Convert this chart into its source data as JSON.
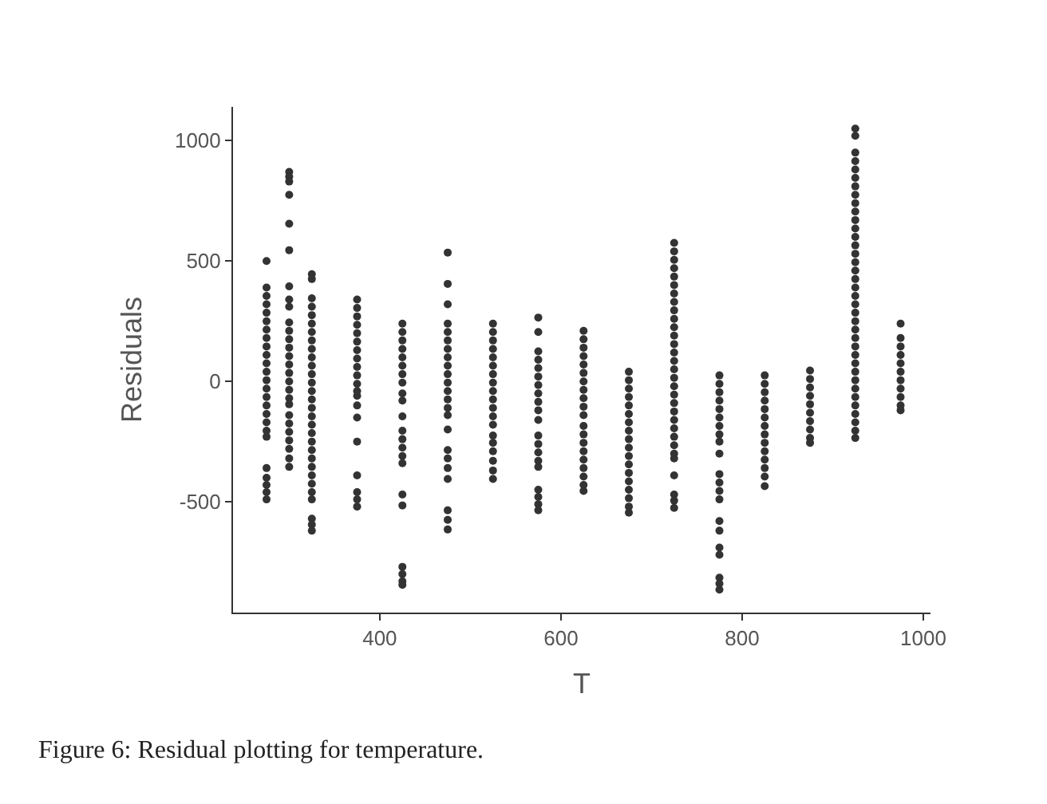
{
  "chart_data": {
    "type": "scatter",
    "xlabel": "T",
    "ylabel": "Residuals",
    "xlim": [
      238,
      1008
    ],
    "ylim": [
      -960,
      1140
    ],
    "xticks": [
      400,
      600,
      800,
      1000
    ],
    "yticks": [
      -500,
      0,
      500,
      1000
    ],
    "marker": "circle",
    "annotations": [
      "Figure 6: Residual plotting for temperature."
    ],
    "series": [
      {
        "color": "#333333",
        "x": [
          275,
          275,
          275,
          275,
          275,
          275,
          275,
          275,
          275,
          275,
          275,
          275,
          275,
          275,
          275,
          275,
          275,
          275,
          275,
          275,
          275,
          275,
          275,
          275,
          275
        ],
        "values": [
          500,
          390,
          355,
          320,
          285,
          250,
          215,
          180,
          145,
          110,
          75,
          40,
          5,
          -30,
          -65,
          -100,
          -135,
          -170,
          -205,
          -230,
          -360,
          -400,
          -430,
          -460,
          -490
        ]
      },
      {
        "color": "#333333",
        "x": [
          300,
          300,
          300,
          300,
          300,
          300,
          300,
          300,
          300,
          300,
          300,
          300,
          300,
          300,
          300,
          300,
          300,
          300,
          300,
          300,
          300,
          300,
          300,
          300,
          300,
          300,
          300
        ],
        "values": [
          870,
          850,
          830,
          775,
          655,
          545,
          395,
          340,
          310,
          245,
          210,
          175,
          140,
          105,
          70,
          35,
          0,
          -35,
          -70,
          -95,
          -140,
          -175,
          -210,
          -245,
          -280,
          -320,
          -355
        ]
      },
      {
        "color": "#333333",
        "x": [
          325,
          325,
          325,
          325,
          325,
          325,
          325,
          325,
          325,
          325,
          325,
          325,
          325,
          325,
          325,
          325,
          325,
          325,
          325,
          325,
          325,
          325,
          325,
          325,
          325,
          325,
          325,
          325,
          325,
          325
        ],
        "values": [
          445,
          425,
          345,
          310,
          275,
          240,
          205,
          170,
          135,
          100,
          65,
          30,
          -5,
          -40,
          -75,
          -110,
          -145,
          -180,
          -215,
          -250,
          -285,
          -320,
          -355,
          -390,
          -425,
          -460,
          -490,
          -570,
          -595,
          -620
        ]
      },
      {
        "color": "#333333",
        "x": [
          375,
          375,
          375,
          375,
          375,
          375,
          375,
          375,
          375,
          375,
          375,
          375,
          375,
          375,
          375,
          375,
          375,
          375,
          375,
          375
        ],
        "values": [
          340,
          305,
          270,
          235,
          200,
          165,
          130,
          95,
          60,
          25,
          -10,
          -40,
          -60,
          -100,
          -150,
          -250,
          -390,
          -460,
          -490,
          -520
        ]
      },
      {
        "color": "#333333",
        "x": [
          425,
          425,
          425,
          425,
          425,
          425,
          425,
          425,
          425,
          425,
          425,
          425,
          425,
          425,
          425,
          425,
          425,
          425,
          425,
          425,
          425,
          425
        ],
        "values": [
          240,
          205,
          170,
          135,
          100,
          65,
          30,
          -5,
          -50,
          -80,
          -145,
          -205,
          -240,
          -275,
          -310,
          -340,
          -470,
          -515,
          -770,
          -800,
          -830,
          -845
        ]
      },
      {
        "color": "#333333",
        "x": [
          475,
          475,
          475,
          475,
          475,
          475,
          475,
          475,
          475,
          475,
          475,
          475,
          475,
          475,
          475,
          475,
          475,
          475,
          475,
          475,
          475,
          475,
          475
        ],
        "values": [
          535,
          405,
          320,
          240,
          205,
          170,
          135,
          100,
          65,
          30,
          -5,
          -40,
          -75,
          -110,
          -140,
          -200,
          -285,
          -320,
          -360,
          -405,
          -535,
          -575,
          -615
        ]
      },
      {
        "color": "#333333",
        "x": [
          525,
          525,
          525,
          525,
          525,
          525,
          525,
          525,
          525,
          525,
          525,
          525,
          525,
          525,
          525,
          525,
          525,
          525,
          525
        ],
        "values": [
          240,
          205,
          170,
          135,
          100,
          65,
          30,
          -5,
          -40,
          -75,
          -110,
          -145,
          -180,
          -225,
          -255,
          -290,
          -330,
          -370,
          -405
        ]
      },
      {
        "color": "#333333",
        "x": [
          575,
          575,
          575,
          575,
          575,
          575,
          575,
          575,
          575,
          575,
          575,
          575,
          575,
          575,
          575,
          575,
          575,
          575,
          575,
          575
        ],
        "values": [
          265,
          205,
          125,
          90,
          55,
          20,
          -15,
          -50,
          -85,
          -120,
          -160,
          -225,
          -260,
          -295,
          -330,
          -355,
          -450,
          -480,
          -510,
          -535
        ]
      },
      {
        "color": "#333333",
        "x": [
          625,
          625,
          625,
          625,
          625,
          625,
          625,
          625,
          625,
          625,
          625,
          625,
          625,
          625,
          625,
          625,
          625,
          625,
          625,
          625
        ],
        "values": [
          210,
          175,
          140,
          105,
          70,
          35,
          0,
          -35,
          -70,
          -105,
          -140,
          -185,
          -220,
          -255,
          -290,
          -325,
          -360,
          -395,
          -430,
          -455
        ]
      },
      {
        "color": "#333333",
        "x": [
          675,
          675,
          675,
          675,
          675,
          675,
          675,
          675,
          675,
          675,
          675,
          675,
          675,
          675,
          675,
          675,
          675,
          675
        ],
        "values": [
          40,
          5,
          -30,
          -65,
          -100,
          -135,
          -170,
          -205,
          -240,
          -275,
          -310,
          -345,
          -380,
          -415,
          -450,
          -485,
          -520,
          -545
        ]
      },
      {
        "color": "#333333",
        "x": [
          725,
          725,
          725,
          725,
          725,
          725,
          725,
          725,
          725,
          725,
          725,
          725,
          725,
          725,
          725,
          725,
          725,
          725,
          725,
          725,
          725,
          725,
          725,
          725,
          725,
          725,
          725,
          725,
          725,
          725,
          725
        ],
        "values": [
          575,
          540,
          505,
          470,
          435,
          400,
          365,
          330,
          295,
          260,
          225,
          190,
          155,
          120,
          85,
          50,
          15,
          -20,
          -55,
          -90,
          -125,
          -160,
          -195,
          -230,
          -265,
          -300,
          -320,
          -390,
          -470,
          -495,
          -525
        ]
      },
      {
        "color": "#333333",
        "x": [
          775,
          775,
          775,
          775,
          775,
          775,
          775,
          775,
          775,
          775,
          775,
          775,
          775,
          775,
          775,
          775,
          775,
          775,
          775,
          775,
          775
        ],
        "values": [
          25,
          -10,
          -45,
          -80,
          -115,
          -150,
          -185,
          -220,
          -250,
          -300,
          -385,
          -420,
          -455,
          -490,
          -580,
          -620,
          -690,
          -720,
          -815,
          -840,
          -865
        ]
      },
      {
        "color": "#333333",
        "x": [
          825,
          825,
          825,
          825,
          825,
          825,
          825,
          825,
          825,
          825,
          825,
          825,
          825,
          825
        ],
        "values": [
          25,
          -10,
          -45,
          -80,
          -115,
          -150,
          -185,
          -220,
          -255,
          -290,
          -325,
          -360,
          -395,
          -435
        ]
      },
      {
        "color": "#333333",
        "x": [
          875,
          875,
          875,
          875,
          875,
          875,
          875,
          875,
          875,
          875
        ],
        "values": [
          45,
          10,
          -25,
          -60,
          -95,
          -130,
          -165,
          -200,
          -235,
          -255
        ]
      },
      {
        "color": "#333333",
        "x": [
          925,
          925,
          925,
          925,
          925,
          925,
          925,
          925,
          925,
          925,
          925,
          925,
          925,
          925,
          925,
          925,
          925,
          925,
          925,
          925,
          925,
          925,
          925,
          925,
          925,
          925,
          925,
          925,
          925,
          925,
          925,
          925,
          925,
          925,
          925,
          925,
          925
        ],
        "values": [
          1050,
          1020,
          950,
          915,
          880,
          845,
          810,
          775,
          740,
          705,
          670,
          635,
          600,
          565,
          530,
          495,
          460,
          425,
          390,
          355,
          320,
          285,
          250,
          215,
          180,
          145,
          110,
          75,
          40,
          5,
          -30,
          -65,
          -100,
          -135,
          -170,
          -205,
          -235
        ]
      },
      {
        "color": "#333333",
        "x": [
          975,
          975,
          975,
          975,
          975,
          975,
          975,
          975,
          975,
          975,
          975
        ],
        "values": [
          240,
          180,
          145,
          110,
          75,
          40,
          5,
          -30,
          -65,
          -100,
          -120
        ]
      }
    ]
  }
}
